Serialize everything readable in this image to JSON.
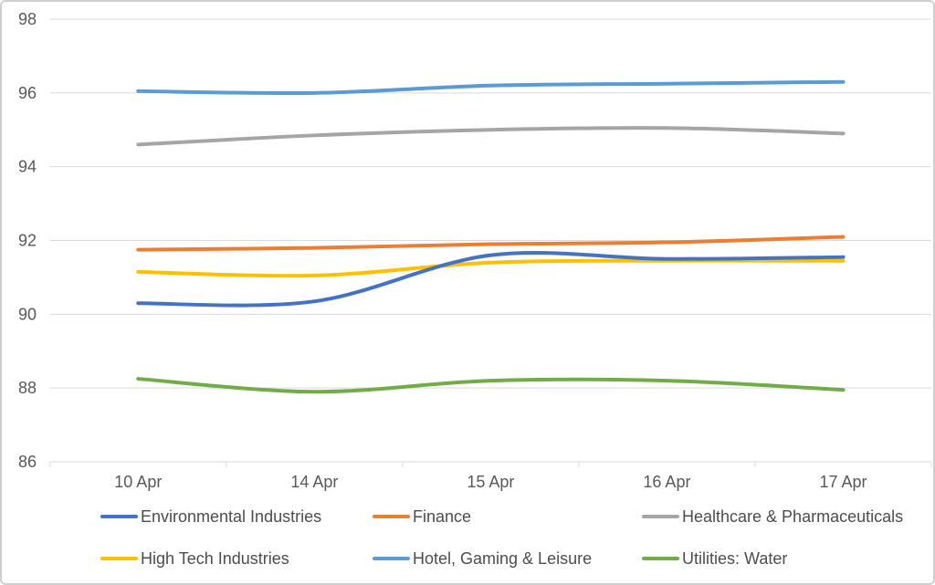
{
  "chart_data": {
    "type": "line",
    "title": "",
    "xlabel": "",
    "ylabel": "",
    "x_categories": [
      "10 Apr",
      "14 Apr",
      "15 Apr",
      "16 Apr",
      "17 Apr"
    ],
    "y_axis": {
      "min": 86,
      "max": 98,
      "step": 2,
      "tick_labels": [
        "86",
        "88",
        "90",
        "92",
        "94",
        "96",
        "98"
      ]
    },
    "grid": "horizontal",
    "smooth_lines": true,
    "markers": false,
    "legend_position": "bottom",
    "series": [
      {
        "name": "Environmental Industries",
        "color": "#4472C4",
        "values": [
          90.3,
          90.35,
          91.6,
          91.5,
          91.55
        ]
      },
      {
        "name": "Finance",
        "color": "#ED7D31",
        "values": [
          91.75,
          91.8,
          91.9,
          91.95,
          92.1
        ]
      },
      {
        "name": "Healthcare & Pharmaceuticals",
        "color": "#A5A5A5",
        "values": [
          94.6,
          94.85,
          95.0,
          95.05,
          94.9
        ]
      },
      {
        "name": "High Tech Industries",
        "color": "#FFC000",
        "values": [
          91.15,
          91.05,
          91.4,
          91.45,
          91.45
        ]
      },
      {
        "name": "Hotel, Gaming & Leisure",
        "color": "#5B9BD5",
        "values": [
          96.05,
          96.0,
          96.2,
          96.25,
          96.3
        ]
      },
      {
        "name": "Utilities: Water",
        "color": "#70AD47",
        "values": [
          88.25,
          87.9,
          88.2,
          88.2,
          87.95
        ]
      }
    ],
    "colors": {
      "gridline": "#D9D9D9",
      "axis_line": "#D9D9D9",
      "axis_text": "#595959",
      "frame_border": "#CFCFCF",
      "background": "#FFFFFF"
    }
  }
}
